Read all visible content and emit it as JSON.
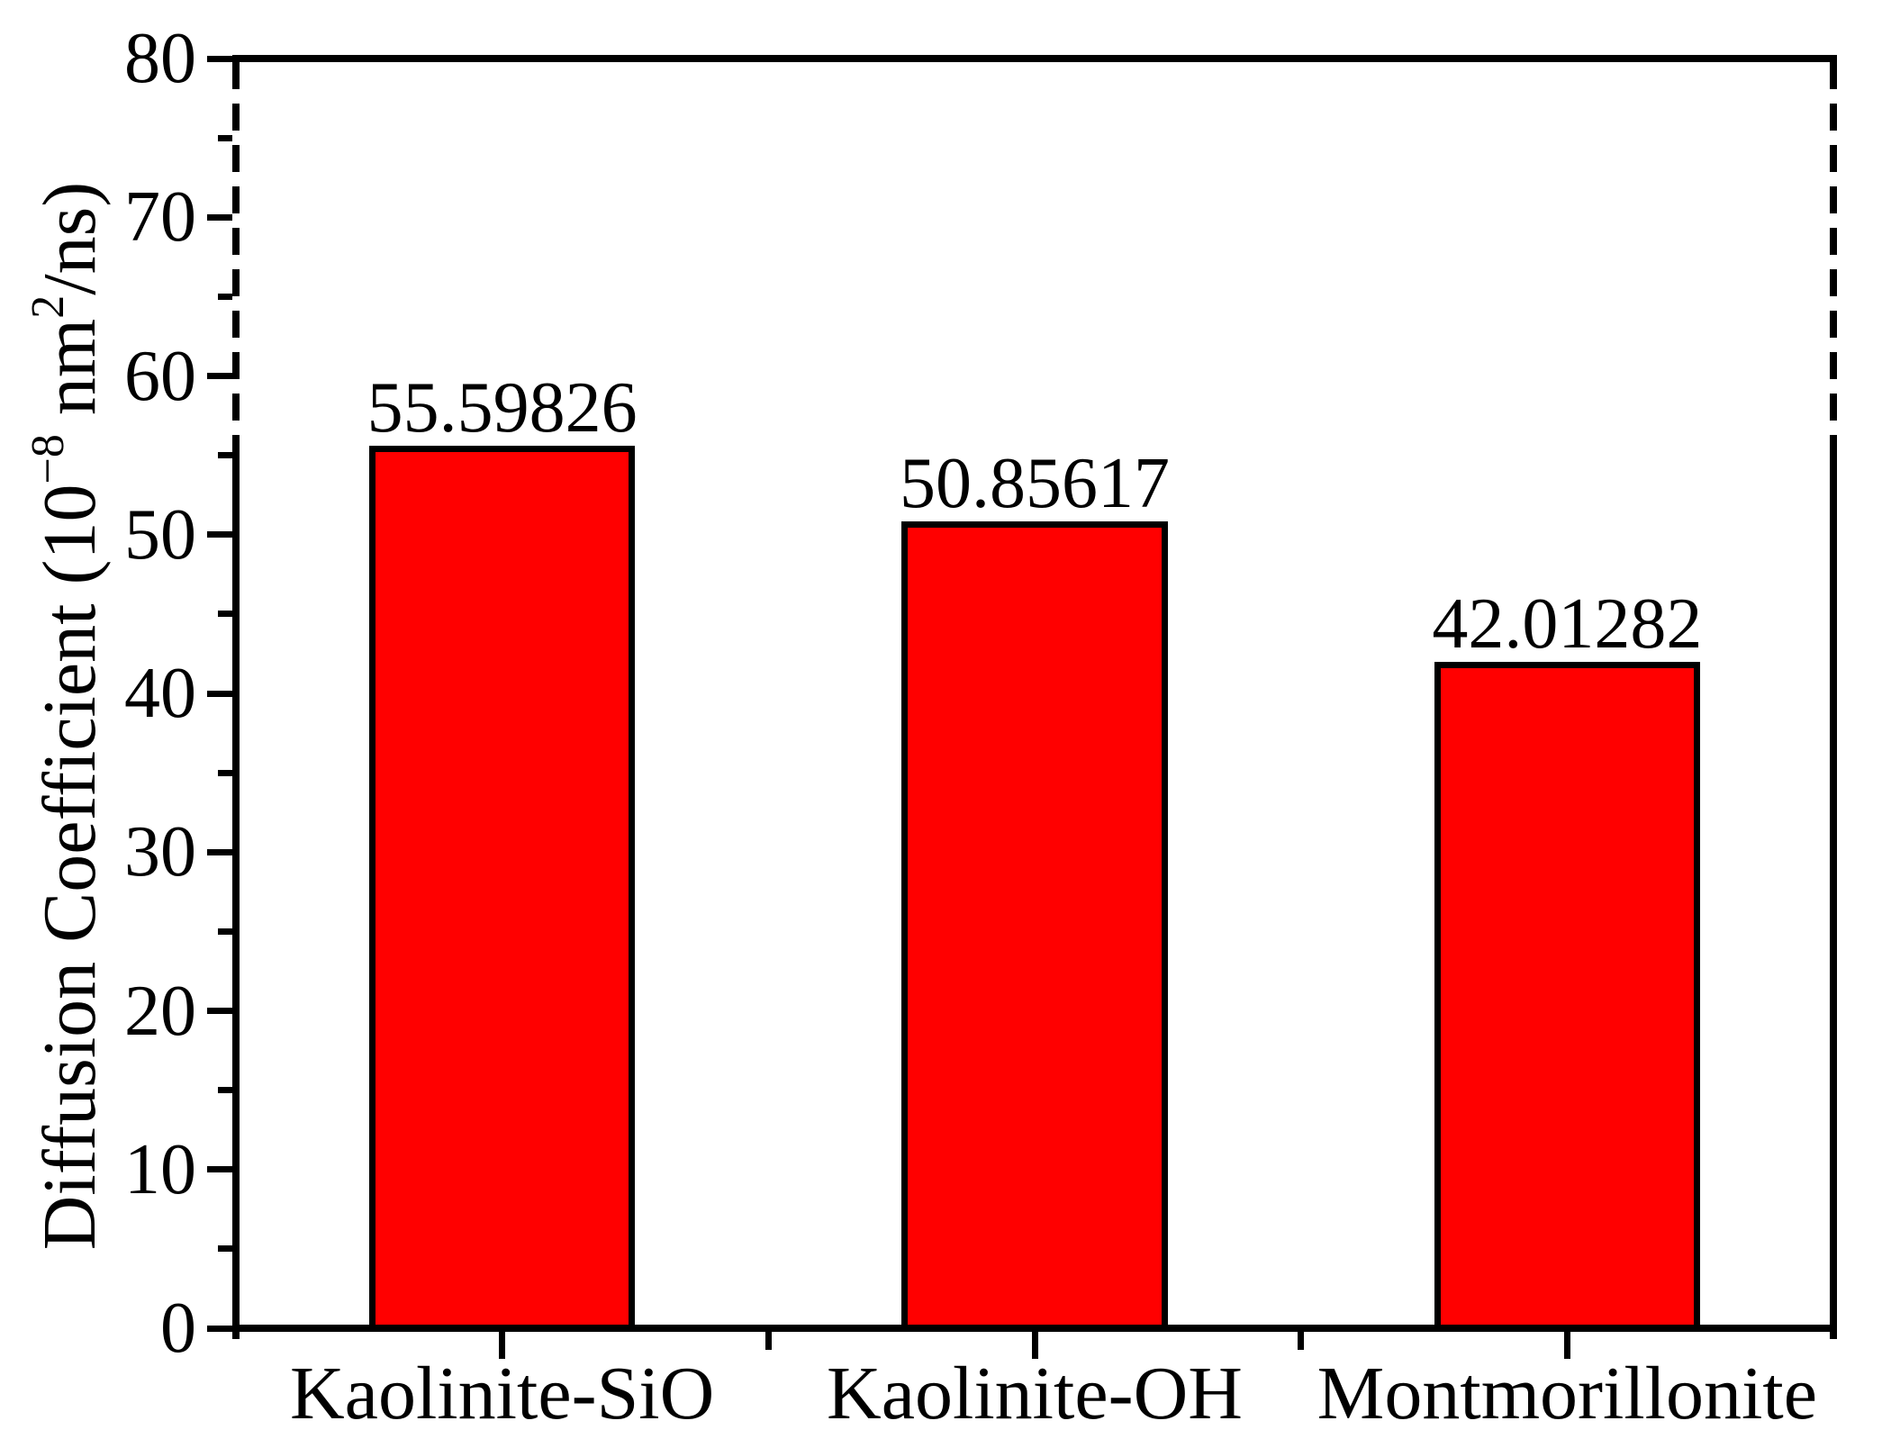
{
  "chart_data": {
    "type": "bar",
    "title": "",
    "categories": [
      "Kaolinite-SiO",
      "Kaolinite-OH",
      "Montmorillonite"
    ],
    "values": [
      55.59826,
      50.85617,
      42.01282
    ],
    "value_labels": [
      "55.59826",
      "50.85617",
      "42.01282"
    ],
    "ylabel": "Diffusion Coefficient (10−8 nm2/ns)",
    "ylabel_parts": {
      "base1": "Diffusion Coefficient (10",
      "sup1": "−8",
      "base2": " nm",
      "sup2": "2",
      "base3": "/ns)"
    },
    "xlabel": "",
    "ylim": [
      0,
      80
    ],
    "ytick_step": 10,
    "yticks": [
      "0",
      "10",
      "20",
      "30",
      "40",
      "50",
      "60",
      "70",
      "80"
    ],
    "minor_tick_step": 5,
    "grid": false,
    "legend": null,
    "bar_color": "#ff0000",
    "bar_border_color": "#000000",
    "axis_color": "#000000",
    "background_color": "#ffffff",
    "axis_style_note": "spines dashed above tallest bar, solid below; ticks outside"
  }
}
